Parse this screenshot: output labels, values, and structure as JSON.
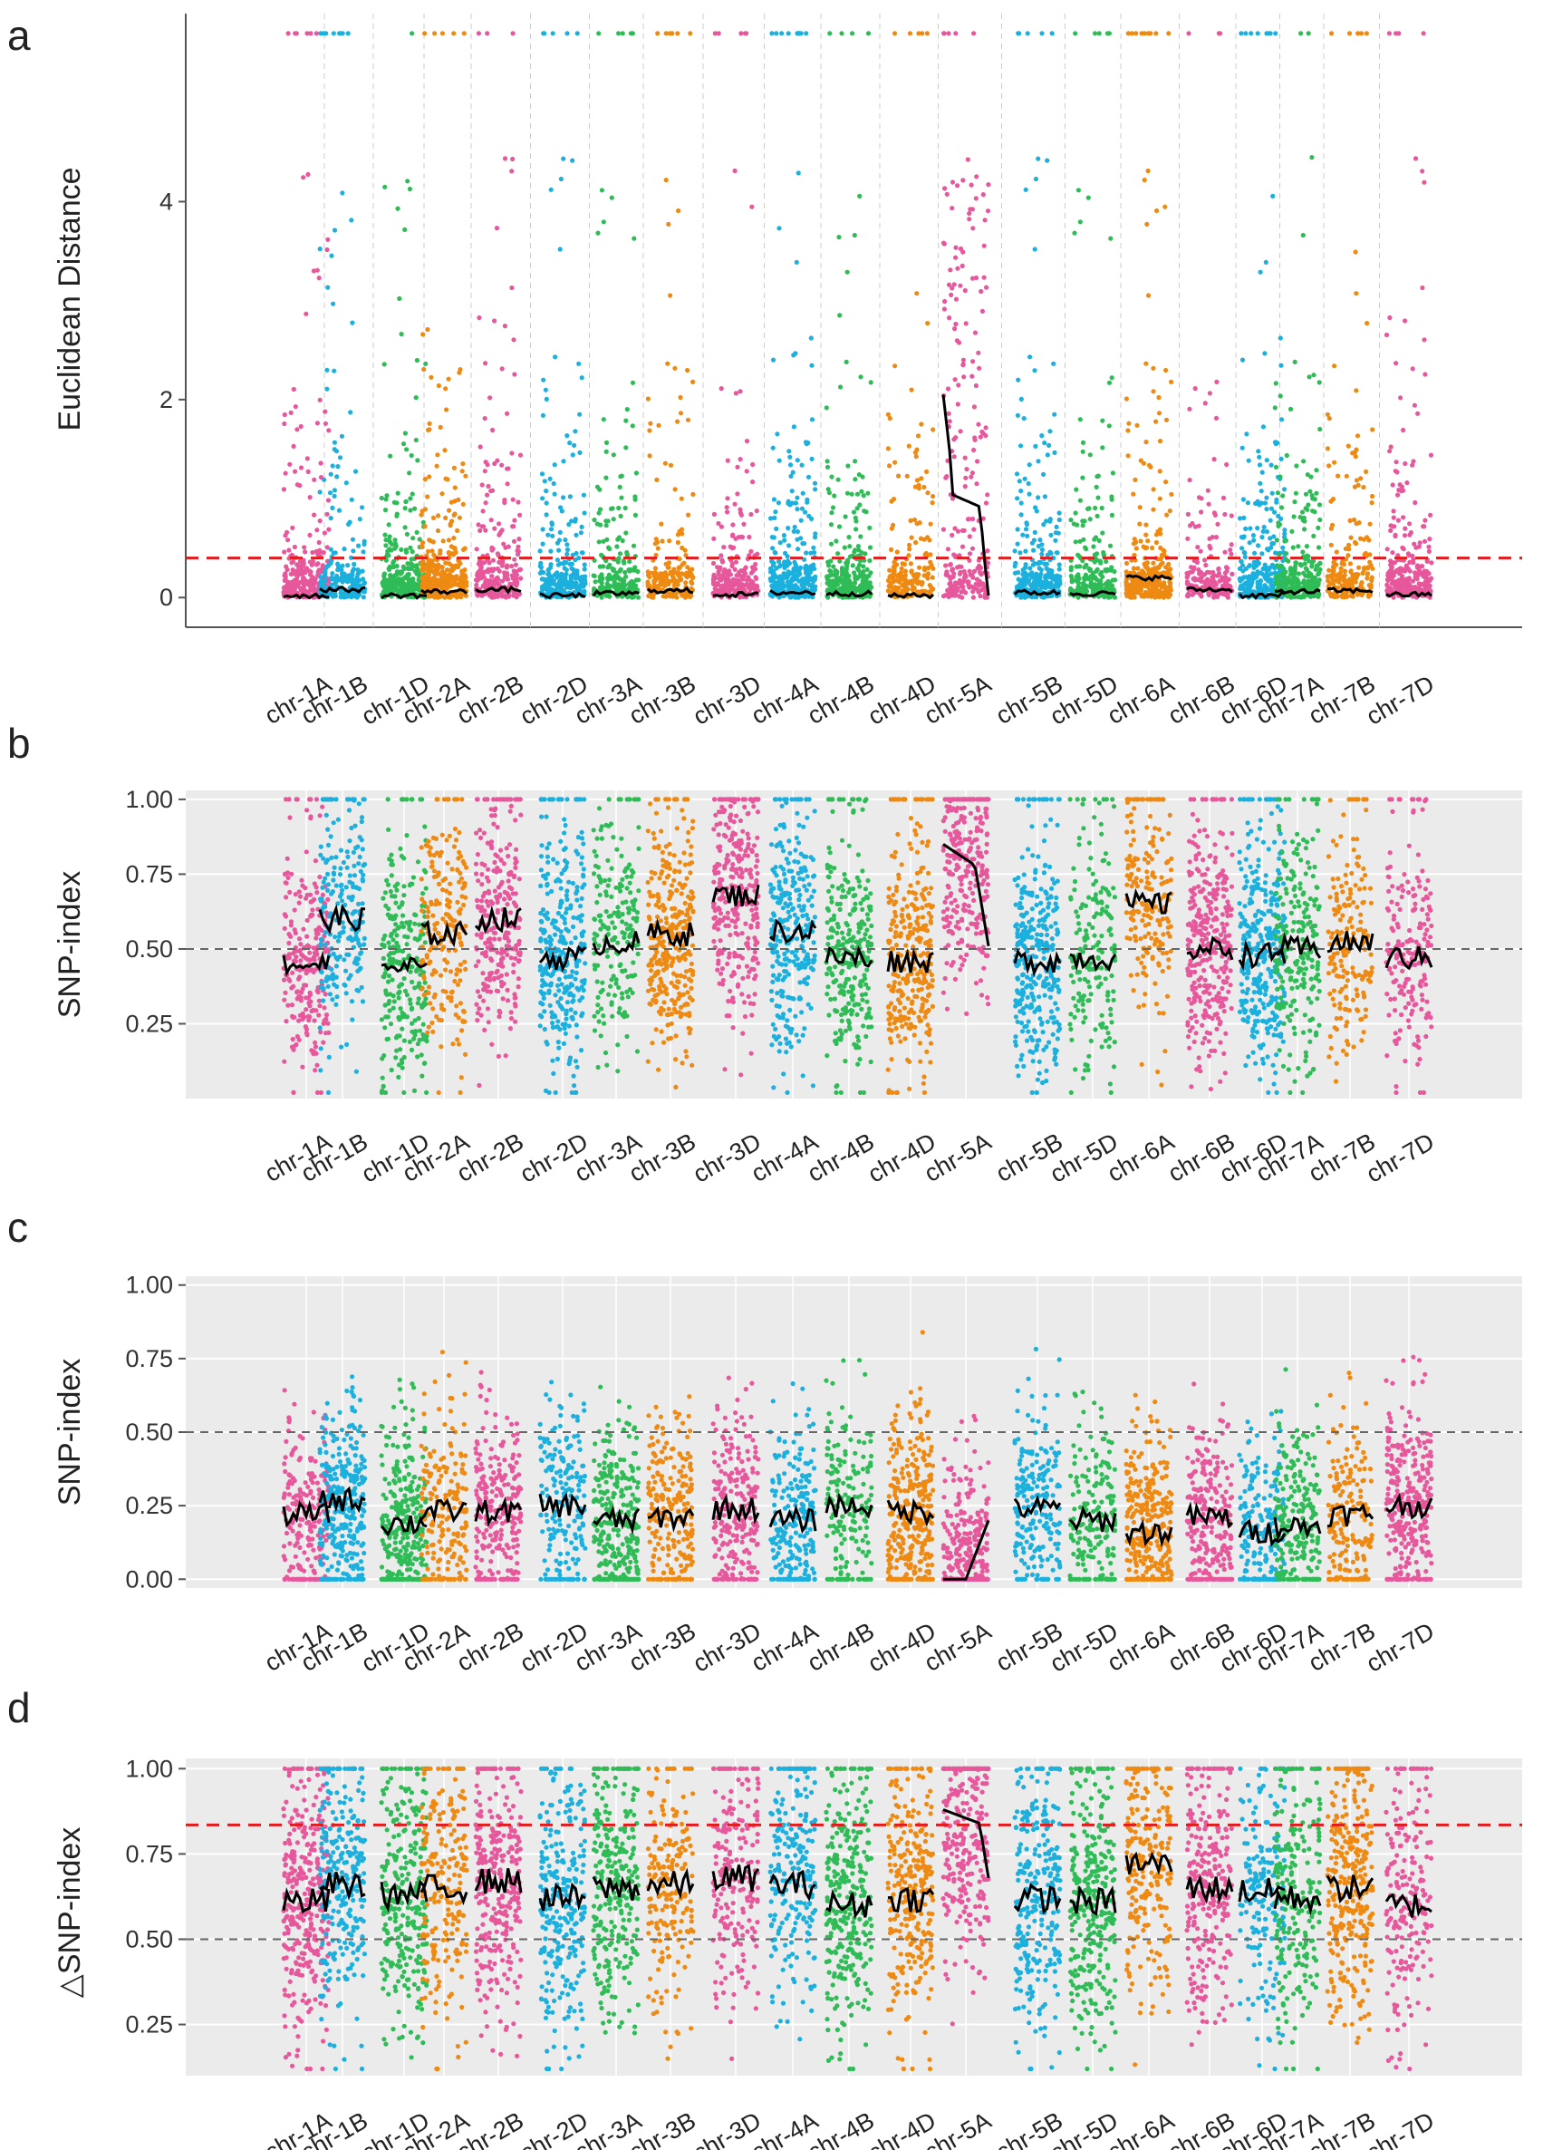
{
  "chart_data": [
    {
      "panel": "a",
      "type": "scatter",
      "title": "",
      "xlabel": "",
      "ylabel": "Euclidean Distance",
      "ylim": [
        -0.3,
        5.9
      ],
      "yticks": [
        0,
        2,
        4
      ],
      "ytick_labels": [
        "0",
        "2",
        "4"
      ],
      "background": "white",
      "threshold": 0.4,
      "threshold_color": "#e41a1c",
      "categories": [
        "chr-1A",
        "chr-1B",
        "chr-1D",
        "chr-2A",
        "chr-2B",
        "chr-2D",
        "chr-3A",
        "chr-3B",
        "chr-3D",
        "chr-4A",
        "chr-4B",
        "chr-4D",
        "chr-5A",
        "chr-5B",
        "chr-5D",
        "chr-6A",
        "chr-6B",
        "chr-6D",
        "chr-7A",
        "chr-7B",
        "chr-7D"
      ],
      "fitted_line": [
        0.02,
        0.08,
        0.02,
        0.06,
        0.08,
        0.02,
        0.04,
        0.07,
        0.03,
        0.05,
        0.04,
        0.02,
        1.3,
        0.05,
        0.04,
        0.2,
        0.08,
        0.02,
        0.06,
        0.07,
        0.03
      ],
      "peak_region": {
        "chromosome": "chr-5A",
        "max": 2.05,
        "notes": "fitted line rises to ~2.0 then declines to ~1.0 and drops to 0"
      }
    },
    {
      "panel": "b",
      "type": "scatter",
      "ylabel": "SNP-index",
      "ylim": [
        0.0,
        1.03
      ],
      "yticks": [
        0.25,
        0.5,
        0.75,
        1.0
      ],
      "ytick_labels": [
        "0.25",
        "0.50",
        "0.75",
        "1.00"
      ],
      "background": "grey",
      "reference_line": 0.5,
      "categories": [
        "chr-1A",
        "chr-1B",
        "chr-1D",
        "chr-2A",
        "chr-2B",
        "chr-2D",
        "chr-3A",
        "chr-3B",
        "chr-3D",
        "chr-4A",
        "chr-4B",
        "chr-4D",
        "chr-5A",
        "chr-5B",
        "chr-5D",
        "chr-6A",
        "chr-6B",
        "chr-6D",
        "chr-7A",
        "chr-7B",
        "chr-7D"
      ],
      "fitted_line": [
        0.45,
        0.6,
        0.44,
        0.55,
        0.6,
        0.47,
        0.52,
        0.55,
        0.68,
        0.56,
        0.47,
        0.46,
        0.8,
        0.46,
        0.47,
        0.65,
        0.5,
        0.48,
        0.5,
        0.52,
        0.47
      ]
    },
    {
      "panel": "c",
      "type": "scatter",
      "ylabel": "SNP-index",
      "ylim": [
        -0.03,
        1.03
      ],
      "yticks": [
        0.0,
        0.25,
        0.5,
        0.75,
        1.0
      ],
      "ytick_labels": [
        "0.00",
        "0.25",
        "0.50",
        "0.75",
        "1.00"
      ],
      "background": "grey",
      "reference_line": 0.5,
      "categories": [
        "chr-1A",
        "chr-1B",
        "chr-1D",
        "chr-2A",
        "chr-2B",
        "chr-2D",
        "chr-3A",
        "chr-3B",
        "chr-3D",
        "chr-4A",
        "chr-4B",
        "chr-4D",
        "chr-5A",
        "chr-5B",
        "chr-5D",
        "chr-6A",
        "chr-6B",
        "chr-6D",
        "chr-7A",
        "chr-7B",
        "chr-7D"
      ],
      "fitted_line": [
        0.22,
        0.27,
        0.19,
        0.23,
        0.23,
        0.25,
        0.2,
        0.21,
        0.24,
        0.2,
        0.25,
        0.23,
        0.08,
        0.24,
        0.2,
        0.16,
        0.21,
        0.16,
        0.18,
        0.22,
        0.25
      ]
    },
    {
      "panel": "d",
      "type": "scatter",
      "ylabel": "△SNP-index",
      "ylim": [
        0.1,
        1.03
      ],
      "yticks": [
        0.25,
        0.5,
        0.75,
        1.0
      ],
      "ytick_labels": [
        "0.25",
        "0.50",
        "0.75",
        "1.00"
      ],
      "background": "grey",
      "reference_line": 0.5,
      "threshold": 0.835,
      "threshold_color": "#e41a1c",
      "categories": [
        "chr-1A",
        "chr-1B",
        "chr-1D",
        "chr-2A",
        "chr-2B",
        "chr-2D",
        "chr-3A",
        "chr-3B",
        "chr-3D",
        "chr-4A",
        "chr-4B",
        "chr-4D",
        "chr-5A",
        "chr-5B",
        "chr-5D",
        "chr-6A",
        "chr-6B",
        "chr-6D",
        "chr-7A",
        "chr-7B",
        "chr-7D"
      ],
      "fitted_line": [
        0.61,
        0.66,
        0.63,
        0.65,
        0.67,
        0.62,
        0.65,
        0.66,
        0.68,
        0.66,
        0.6,
        0.62,
        0.82,
        0.62,
        0.61,
        0.72,
        0.65,
        0.64,
        0.62,
        0.65,
        0.6
      ]
    }
  ],
  "colors": {
    "pink": "#e7579b",
    "blue": "#1bb0de",
    "green": "#2fbc57",
    "orange": "#ee8a12",
    "line": "#000000",
    "threshold": "#e41a1c",
    "panel_grey": "#ebebeb"
  },
  "chromosome_color_cycle": [
    "pink",
    "blue",
    "green",
    "orange"
  ]
}
